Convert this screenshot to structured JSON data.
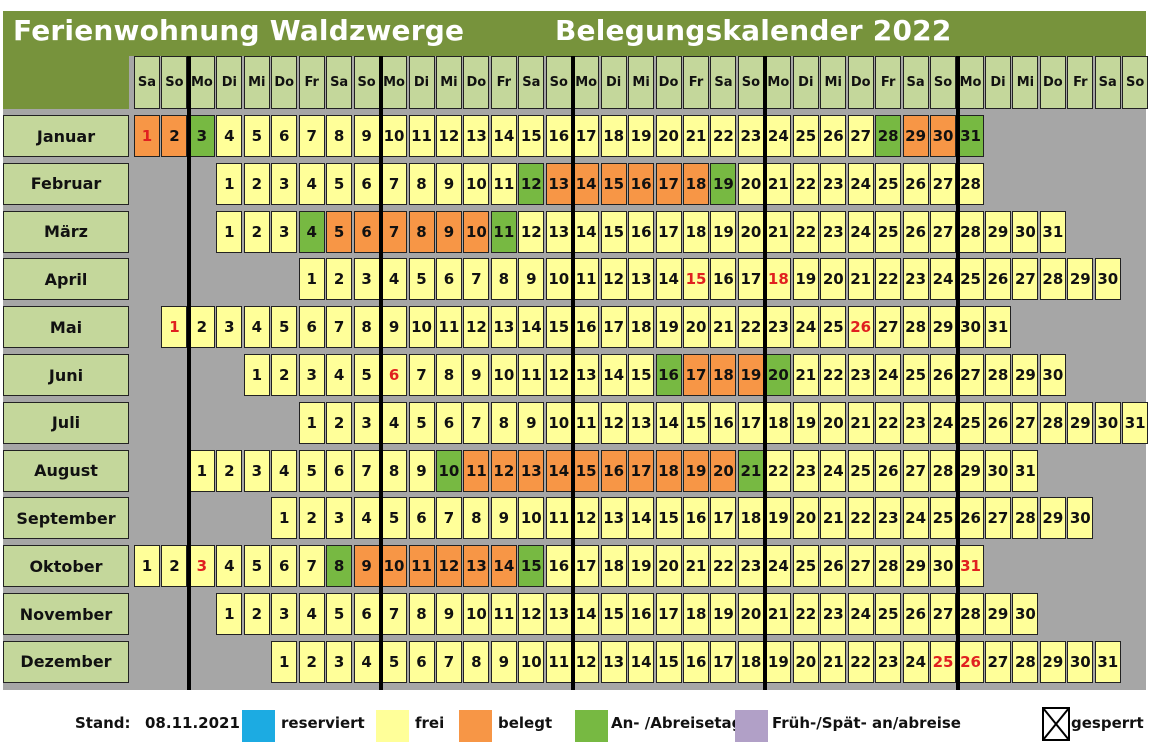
{
  "header": {
    "title_left": "Ferienwohnung Waldzwerge",
    "title_right": "Belegungskalender 2022"
  },
  "weekdays": [
    "Sa",
    "So",
    "Mo",
    "Di",
    "Mi",
    "Do",
    "Fr",
    "Sa",
    "So",
    "Mo",
    "Di",
    "Mi",
    "Do",
    "Fr",
    "Sa",
    "So",
    "Mo",
    "Di",
    "Mi",
    "Do",
    "Fr",
    "Sa",
    "So",
    "Mo",
    "Di",
    "Mi",
    "Do",
    "Fr",
    "Sa",
    "So",
    "Mo",
    "Di",
    "Mi",
    "Do",
    "Fr",
    "Sa",
    "So"
  ],
  "colors": {
    "header_green": "#77933c",
    "label_green": "#c4d79b",
    "frei": "#ffff99",
    "belegt": "#f79646",
    "an_abreise": "#77b942",
    "reserviert": "#1cabe2",
    "frueh_spaet": "#b1a0c7",
    "holiday_text": "#e02020",
    "background_gray": "#a6a6a6"
  },
  "months": [
    {
      "name": "Januar",
      "start": 0,
      "days": 31,
      "belegt": [
        1,
        2,
        29,
        30
      ],
      "an_abreise": [
        3,
        28,
        31
      ],
      "red": [
        1
      ]
    },
    {
      "name": "Februar",
      "start": 3,
      "days": 28,
      "belegt": [
        13,
        14,
        15,
        16,
        17,
        18
      ],
      "an_abreise": [
        12,
        19
      ],
      "red": []
    },
    {
      "name": "März",
      "start": 3,
      "days": 31,
      "belegt": [
        5,
        6,
        7,
        8,
        9,
        10
      ],
      "an_abreise": [
        4,
        11
      ],
      "red": []
    },
    {
      "name": "April",
      "start": 6,
      "days": 30,
      "belegt": [],
      "an_abreise": [],
      "red": [
        15,
        18
      ]
    },
    {
      "name": "Mai",
      "start": 1,
      "days": 31,
      "belegt": [],
      "an_abreise": [],
      "red": [
        1,
        26
      ]
    },
    {
      "name": "Juni",
      "start": 4,
      "days": 30,
      "belegt": [
        17,
        18,
        19
      ],
      "an_abreise": [
        16,
        20
      ],
      "red": [
        6
      ]
    },
    {
      "name": "Juli",
      "start": 6,
      "days": 31,
      "belegt": [],
      "an_abreise": [],
      "red": []
    },
    {
      "name": "August",
      "start": 2,
      "days": 31,
      "belegt": [
        11,
        12,
        13,
        14,
        15,
        16,
        17,
        18,
        19,
        20
      ],
      "an_abreise": [
        10,
        21
      ],
      "red": []
    },
    {
      "name": "September",
      "start": 5,
      "days": 30,
      "belegt": [],
      "an_abreise": [],
      "red": []
    },
    {
      "name": "Oktober",
      "start": 0,
      "days": 31,
      "belegt": [
        9,
        10,
        11,
        12,
        13,
        14
      ],
      "an_abreise": [
        8,
        15
      ],
      "red": [
        3,
        31
      ]
    },
    {
      "name": "November",
      "start": 3,
      "days": 30,
      "belegt": [],
      "an_abreise": [],
      "red": []
    },
    {
      "name": "Dezember",
      "start": 5,
      "days": 31,
      "belegt": [],
      "an_abreise": [],
      "red": [
        25,
        26
      ]
    }
  ],
  "legend": {
    "stand_label": "Stand:",
    "stand_date": "08.11.2021",
    "reserviert": "reserviert",
    "frei": "frei",
    "belegt": "belegt",
    "an_abreise": "An- /Abreisetag",
    "frueh_spaet": "Früh-/Spät- an/abreise",
    "gesperrt": "gesperrt",
    "gesperrt_icon": "x-box-icon"
  }
}
